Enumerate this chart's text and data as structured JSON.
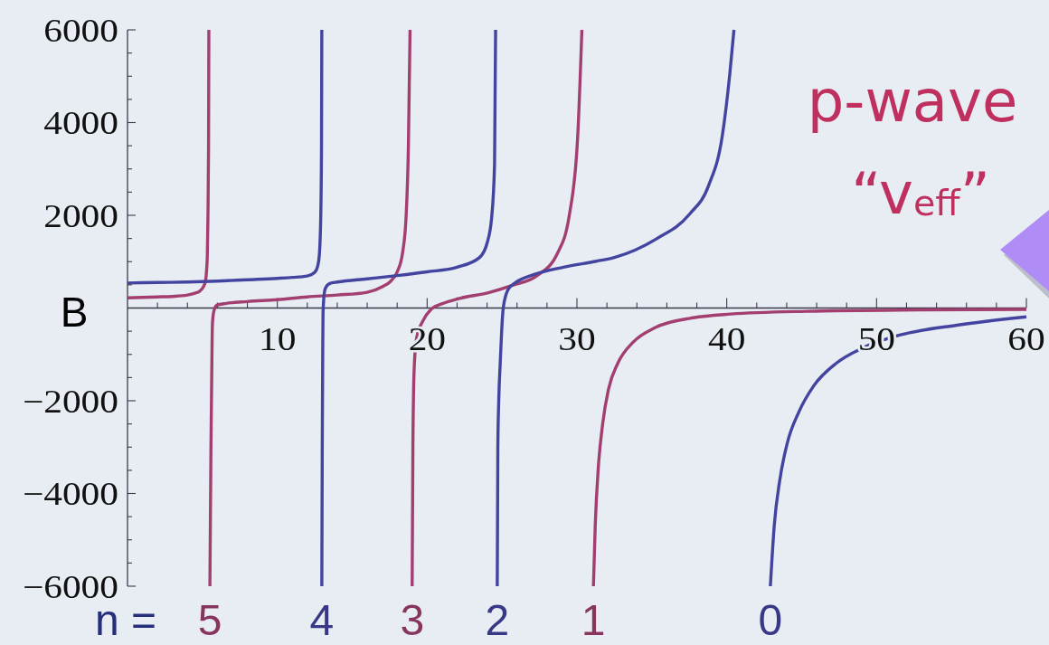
{
  "chart_data": {
    "type": "line",
    "title": "p-wave",
    "subtitle": "“v$_{eff}$”",
    "xlabel": "B",
    "annotations": [
      "n ="
    ],
    "xlim": [
      0,
      60
    ],
    "ylim": [
      -6000,
      6000
    ],
    "xticks": [
      {
        "value": 2,
        "label": null
      },
      {
        "value": 4,
        "label": null
      },
      {
        "value": 6,
        "label": null
      },
      {
        "value": 8,
        "label": null
      },
      10,
      {
        "value": 12,
        "label": null
      },
      {
        "value": 14,
        "label": null
      },
      {
        "value": 16,
        "label": null
      },
      {
        "value": 18,
        "label": null
      },
      20,
      {
        "value": 22,
        "label": null
      },
      {
        "value": 24,
        "label": null
      },
      {
        "value": 26,
        "label": null
      },
      {
        "value": 28,
        "label": null
      },
      30,
      {
        "value": 32,
        "label": null
      },
      {
        "value": 34,
        "label": null
      },
      {
        "value": 36,
        "label": null
      },
      {
        "value": 38,
        "label": null
      },
      40,
      {
        "value": 42,
        "label": null
      },
      {
        "value": 44,
        "label": null
      },
      {
        "value": 46,
        "label": null
      },
      {
        "value": 48,
        "label": null
      },
      50,
      {
        "value": 52,
        "label": null
      },
      {
        "value": 54,
        "label": null
      },
      {
        "value": 56,
        "label": null
      },
      {
        "value": 58,
        "label": null
      },
      60
    ],
    "yticks": [
      {
        "value": -6000,
        "label": "−6000"
      },
      {
        "value": -5500,
        "label": null
      },
      {
        "value": -5000,
        "label": null
      },
      {
        "value": -4500,
        "label": null
      },
      {
        "value": -4000,
        "label": "−4000"
      },
      {
        "value": -3500,
        "label": null
      },
      {
        "value": -3000,
        "label": null
      },
      {
        "value": -2500,
        "label": null
      },
      {
        "value": -2000,
        "label": "−2000"
      },
      {
        "value": -1500,
        "label": null
      },
      {
        "value": -1000,
        "label": null
      },
      {
        "value": -500,
        "label": null
      },
      {
        "value": 500,
        "label": null
      },
      {
        "value": 1000,
        "label": null
      },
      {
        "value": 1500,
        "label": null
      },
      2000,
      {
        "value": 2500,
        "label": null
      },
      {
        "value": 3000,
        "label": null
      },
      {
        "value": 3500,
        "label": null
      },
      4000,
      {
        "value": 4500,
        "label": null
      },
      {
        "value": 5000,
        "label": null
      },
      {
        "value": 5500,
        "label": null
      },
      6000
    ],
    "series": [
      {
        "color": "#a23f70",
        "x": [
          0,
          1,
          2,
          3,
          4,
          4.5,
          4.8,
          5.07,
          5.21,
          5.27,
          5.33,
          5.37,
          5.41,
          5.43
        ],
        "values": [
          220,
          230,
          240,
          250,
          280,
          320,
          360,
          460,
          590,
          780,
          1170,
          2000,
          3500,
          6000
        ]
      },
      {
        "color": "#4343a0",
        "x": [
          0,
          2,
          4,
          6,
          8,
          10,
          11,
          12,
          12.5,
          12.7,
          12.81,
          12.9,
          12.95,
          12.97
        ],
        "values": [
          540,
          550,
          560,
          580,
          610,
          640,
          660,
          690,
          770,
          910,
          1170,
          2000,
          3500,
          6000
        ]
      },
      {
        "name": "5",
        "color": "#a23f70",
        "x": [
          5.5,
          5.57,
          5.62,
          5.67,
          5.77,
          5.97,
          6.6,
          8,
          10,
          12,
          14,
          16,
          17,
          17.6,
          18,
          18.35,
          18.6,
          18.75,
          18.86
        ],
        "values": [
          -6000,
          -3000,
          -1500,
          -330,
          -60,
          60,
          100,
          140,
          180,
          240,
          280,
          340,
          460,
          590,
          780,
          1170,
          2000,
          3500,
          6000
        ]
      },
      {
        "name": "4",
        "color": "#4343a0",
        "x": [
          12.97,
          13.0,
          13.03,
          13.05,
          13.1,
          13.2,
          13.5,
          14,
          16,
          18,
          20,
          22,
          23.5,
          24,
          24.3,
          24.5,
          24.57
        ],
        "values": [
          -6000,
          -3000,
          -1000,
          -130,
          200,
          420,
          530,
          560,
          630,
          700,
          780,
          880,
          1090,
          1400,
          1930,
          3100,
          6000
        ]
      },
      {
        "name": "3",
        "color": "#a23f70",
        "x": [
          19.0,
          19.05,
          19.13,
          19.3,
          19.75,
          20.26,
          21.06,
          22.07,
          24.08,
          25.7,
          27.3,
          28.7,
          29.5,
          30.05,
          30.33
        ],
        "values": [
          -6000,
          -3000,
          -1350,
          -640,
          -260,
          -30,
          100,
          200,
          330,
          490,
          690,
          1180,
          2020,
          3700,
          6000
        ]
      },
      {
        "name": "2",
        "color": "#4343a0",
        "x": [
          24.68,
          24.72,
          24.78,
          24.88,
          24.98,
          25.08,
          25.39,
          25.9,
          27.1,
          29.1,
          31.3,
          32.5,
          35.3,
          37.5,
          38.8,
          39.7,
          40.2,
          40.48
        ],
        "values": [
          -6000,
          -3000,
          -2000,
          -1170,
          -460,
          0,
          390,
          550,
          720,
          880,
          1010,
          1090,
          1490,
          2020,
          2650,
          3710,
          5040,
          6000
        ]
      },
      {
        "name": "1",
        "color": "#a23f70",
        "x": [
          31.1,
          31.22,
          31.42,
          31.72,
          32.1,
          32.73,
          33.74,
          35.24,
          37.76,
          40.27,
          45.3,
          52.85,
          60
        ],
        "values": [
          -6000,
          -4700,
          -3470,
          -2490,
          -1760,
          -1190,
          -740,
          -420,
          -210,
          -130,
          -70,
          -40,
          -30
        ]
      },
      {
        "name": "0",
        "color": "#4343a0",
        "x": [
          42.91,
          43.17,
          43.54,
          44.05,
          44.8,
          45.8,
          47.31,
          49.08,
          51.59,
          55.36,
          60
        ],
        "values": [
          -6000,
          -4690,
          -3710,
          -2900,
          -2250,
          -1680,
          -1190,
          -860,
          -580,
          -370,
          -190
        ]
      }
    ]
  }
}
